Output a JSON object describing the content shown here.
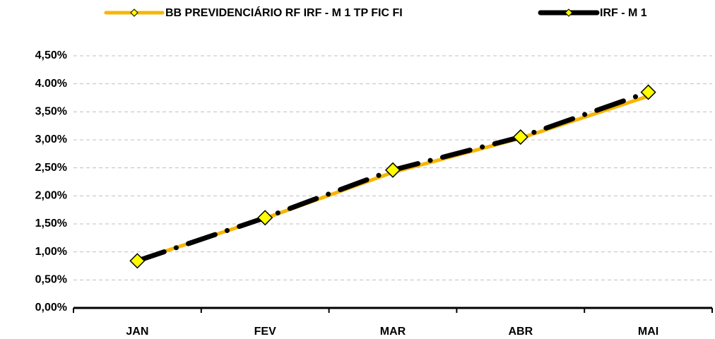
{
  "chart_data": {
    "type": "line",
    "categories": [
      "JAN",
      "FEV",
      "MAR",
      "ABR",
      "MAI"
    ],
    "series": [
      {
        "name": "BB PREVIDENCIÁRIO RF IRF - M 1 TP FIC FI",
        "color": "#f7b500",
        "line_style": "solid",
        "markers": false,
        "values": [
          0.85,
          1.6,
          2.42,
          3.03,
          3.78
        ]
      },
      {
        "name": "IRF - M 1",
        "color": "#000000",
        "line_style": "dashed",
        "markers": true,
        "marker_color": "#ffff00",
        "values": [
          0.84,
          1.61,
          2.46,
          3.05,
          3.85
        ]
      }
    ],
    "ylim": [
      0,
      4.5
    ],
    "yticks": [
      {
        "value": 0,
        "label": "0,00%"
      },
      {
        "value": 0.5,
        "label": "0,50%"
      },
      {
        "value": 1,
        "label": "1,00%"
      },
      {
        "value": 1.5,
        "label": "1,50%"
      },
      {
        "value": 2,
        "label": "2,00%"
      },
      {
        "value": 2.5,
        "label": "2,50%"
      },
      {
        "value": 3,
        "label": "3,00%"
      },
      {
        "value": 3.5,
        "label": "3,50%"
      },
      {
        "value": 4,
        "label": "4.00%"
      },
      {
        "value": 4.5,
        "label": "4,50%"
      }
    ],
    "grid": true,
    "legend": "top"
  }
}
